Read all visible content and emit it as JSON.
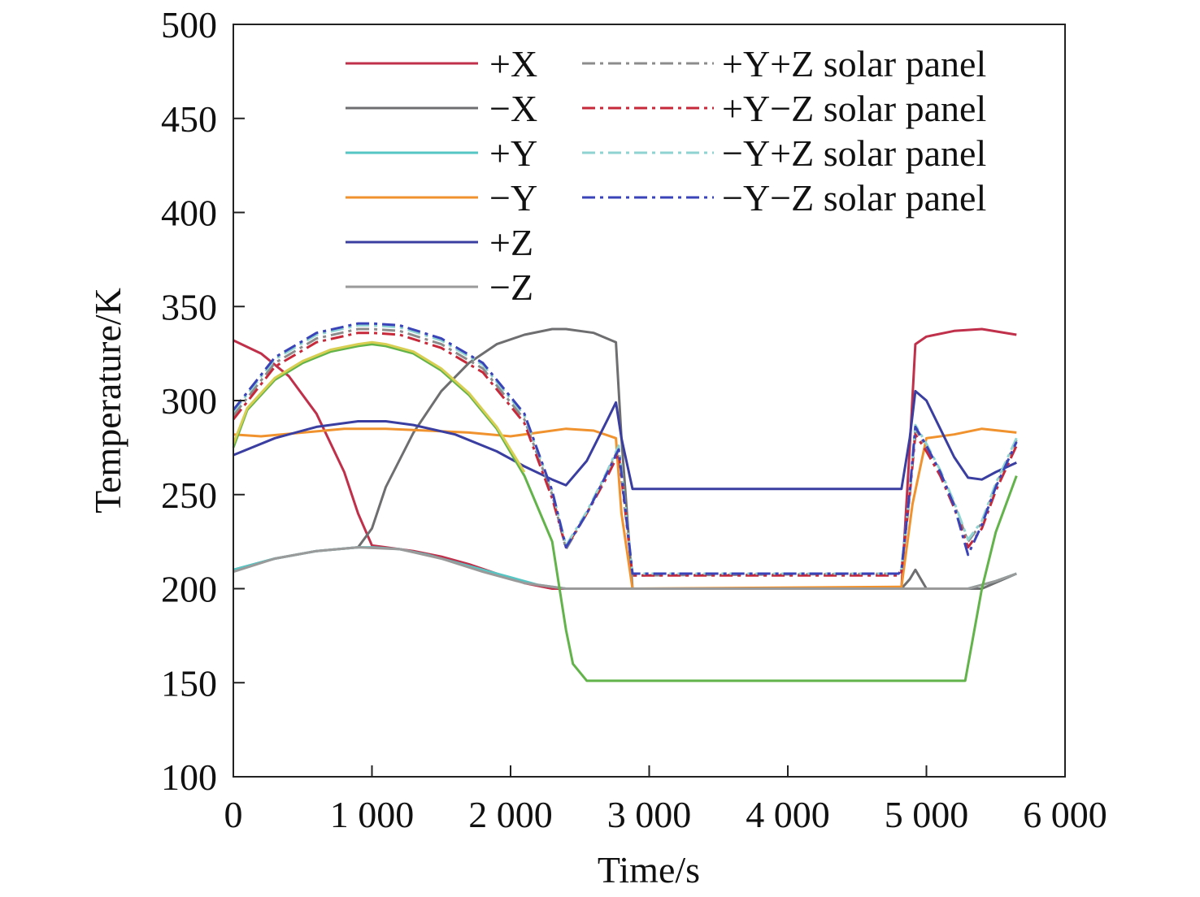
{
  "chart_data": {
    "type": "line",
    "title": "",
    "xlabel": "Time/s",
    "ylabel": "Temperature/K",
    "xlim": [
      0,
      6000
    ],
    "ylim": [
      100,
      500
    ],
    "xticks": [
      0,
      1000,
      2000,
      3000,
      4000,
      5000,
      6000
    ],
    "xtick_labels": [
      "0",
      "1 000",
      "2 000",
      "3 000",
      "4 000",
      "5 000",
      "6 000"
    ],
    "yticks": [
      100,
      150,
      200,
      250,
      300,
      350,
      400,
      450,
      500
    ],
    "ytick_labels": [
      "100",
      "150",
      "200",
      "250",
      "300",
      "350",
      "400",
      "450",
      "500"
    ],
    "grid": false,
    "legend_position": "top-right",
    "series": [
      {
        "name": "+X",
        "color": "#c0304a",
        "dash": "solid",
        "x": [
          0,
          200,
          400,
          600,
          800,
          900,
          1000,
          1100,
          1300,
          1500,
          1700,
          1900,
          2100,
          2300,
          2500,
          2700,
          2780,
          2880,
          4800,
          4820,
          4880,
          4920,
          5000,
          5200,
          5400,
          5650
        ],
        "y": [
          332,
          325,
          313,
          293,
          262,
          240,
          223,
          222,
          220,
          217,
          213,
          208,
          203,
          200,
          200,
          200,
          200,
          200,
          200,
          200,
          275,
          330,
          334,
          337,
          338,
          335
        ]
      },
      {
        "name": "−X",
        "color": "#6e6e70",
        "dash": "solid",
        "x": [
          0,
          300,
          600,
          900,
          1000,
          1100,
          1300,
          1500,
          1700,
          1900,
          2100,
          2300,
          2400,
          2600,
          2760,
          2800,
          2880,
          4800,
          4820,
          4880,
          4920,
          5000,
          5200,
          5400,
          5650
        ],
        "y": [
          210,
          216,
          220,
          222,
          232,
          254,
          283,
          305,
          320,
          330,
          335,
          338,
          338,
          336,
          331,
          280,
          200,
          200,
          200,
          205,
          210,
          200,
          200,
          200,
          208
        ]
      },
      {
        "name": "+Y",
        "color": "#55c6c4",
        "dash": "solid",
        "x": [
          0,
          300,
          600,
          900,
          1000,
          1200,
          1400,
          1600,
          1800,
          2000,
          2200,
          2400,
          2600,
          2800,
          3000,
          3500,
          4000,
          4500,
          5000,
          5300,
          5500,
          5650
        ],
        "y": [
          210,
          216,
          220,
          222,
          222,
          221,
          218,
          214,
          210,
          206,
          202,
          200,
          200,
          200,
          200,
          200,
          200,
          200,
          200,
          200,
          204,
          208
        ]
      },
      {
        "name": "−Y",
        "color": "#f0922e",
        "dash": "solid",
        "x": [
          0,
          200,
          500,
          800,
          1100,
          1400,
          1700,
          2000,
          2200,
          2400,
          2600,
          2760,
          2800,
          2880,
          4800,
          4820,
          4900,
          5000,
          5200,
          5400,
          5650
        ],
        "y": [
          282,
          281,
          283,
          285,
          285,
          284,
          283,
          281,
          283,
          285,
          284,
          280,
          240,
          200,
          201,
          201,
          245,
          280,
          282,
          285,
          283
        ]
      },
      {
        "name": "+Z",
        "color": "#3a3ea0",
        "dash": "solid",
        "x": [
          0,
          300,
          600,
          900,
          1100,
          1300,
          1600,
          1900,
          2100,
          2300,
          2400,
          2550,
          2700,
          2760,
          2800,
          2880,
          4800,
          4820,
          4880,
          4920,
          5000,
          5100,
          5200,
          5300,
          5400,
          5500,
          5650
        ],
        "y": [
          271,
          280,
          286,
          289,
          289,
          287,
          282,
          273,
          265,
          258,
          255,
          268,
          290,
          299,
          280,
          253,
          253,
          253,
          280,
          305,
          300,
          285,
          270,
          259,
          258,
          262,
          267
        ]
      },
      {
        "name": "−Z",
        "color": "#9a9a9a",
        "dash": "solid",
        "x": [
          0,
          300,
          600,
          900,
          1200,
          1500,
          1800,
          2100,
          2400,
          2700,
          3000,
          3500,
          4000,
          4500,
          5000,
          5300,
          5500,
          5650
        ],
        "y": [
          209,
          216,
          220,
          222,
          221,
          216,
          209,
          203,
          200,
          200,
          200,
          200,
          200,
          200,
          200,
          200,
          204,
          208
        ]
      },
      {
        "name": "",
        "color": "#62b34a",
        "dash": "solid",
        "x": [
          0,
          100,
          300,
          500,
          700,
          900,
          1000,
          1100,
          1300,
          1500,
          1700,
          1900,
          2100,
          2300,
          2400,
          2450,
          2550,
          3000,
          4000,
          5000,
          5280,
          5400,
          5500,
          5650
        ],
        "y": [
          275,
          295,
          311,
          320,
          326,
          329,
          330,
          329,
          325,
          316,
          303,
          285,
          260,
          225,
          178,
          160,
          151,
          151,
          151,
          151,
          151,
          200,
          230,
          260
        ]
      },
      {
        "name": "",
        "color": "#d8cf52",
        "dash": "solid",
        "x": [
          0,
          100,
          300,
          500,
          700,
          900,
          1000,
          1100,
          1300,
          1500,
          1700,
          1900,
          2100
        ],
        "y": [
          277,
          296,
          312,
          321,
          327,
          330,
          331,
          330,
          326,
          317,
          304,
          286,
          262
        ]
      },
      {
        "name": "+Y+Z solar panel",
        "color": "#8c8c8c",
        "dash": "dashdot",
        "x": [
          0,
          300,
          600,
          900,
          1000,
          1200,
          1500,
          1800,
          2100,
          2300,
          2400,
          2550,
          2700,
          2780,
          2880,
          4800,
          4820,
          4880,
          4920,
          5000,
          5100,
          5200,
          5300,
          5400,
          5500,
          5650
        ],
        "y": [
          292,
          320,
          333,
          338,
          338,
          337,
          330,
          317,
          290,
          250,
          221,
          240,
          262,
          275,
          207,
          208,
          210,
          250,
          285,
          275,
          262,
          245,
          225,
          235,
          255,
          279
        ]
      },
      {
        "name": "+Y−Z solar panel",
        "color": "#c62a3a",
        "dash": "dashdot",
        "x": [
          0,
          300,
          600,
          900,
          1000,
          1200,
          1500,
          1800,
          2100,
          2300,
          2400,
          2550,
          2700,
          2780,
          2880,
          4800,
          4820,
          4880,
          4920,
          5000,
          5100,
          5200,
          5300,
          5400,
          5500,
          5650
        ],
        "y": [
          290,
          318,
          331,
          336,
          336,
          335,
          328,
          315,
          288,
          248,
          222,
          240,
          260,
          272,
          207,
          207,
          209,
          250,
          282,
          273,
          260,
          243,
          222,
          232,
          252,
          276
        ]
      },
      {
        "name": "−Y+Z solar panel",
        "color": "#8fd4d2",
        "dash": "dashdot",
        "x": [
          0,
          300,
          600,
          900,
          1000,
          1200,
          1500,
          1800,
          2100,
          2300,
          2400,
          2550,
          2700,
          2780,
          2880,
          4800,
          4820,
          4880,
          4920,
          5000,
          5100,
          5200,
          5300,
          5400,
          5500,
          5650
        ],
        "y": [
          294,
          322,
          335,
          340,
          340,
          339,
          332,
          319,
          292,
          252,
          223,
          241,
          263,
          276,
          208,
          208,
          210,
          252,
          287,
          277,
          263,
          246,
          226,
          236,
          256,
          280
        ]
      },
      {
        "name": "−Y−Z solar panel",
        "color": "#3a44b8",
        "dash": "dashdot",
        "x": [
          0,
          300,
          600,
          900,
          1000,
          1200,
          1500,
          1800,
          2100,
          2300,
          2400,
          2550,
          2700,
          2780,
          2880,
          4800,
          4820,
          4880,
          4920,
          5000,
          5100,
          5200,
          5300,
          5400,
          5500,
          5650
        ],
        "y": [
          295,
          323,
          336,
          341,
          341,
          340,
          333,
          320,
          293,
          252,
          222,
          240,
          262,
          274,
          208,
          208,
          210,
          252,
          286,
          276,
          262,
          244,
          218,
          234,
          254,
          278
        ]
      }
    ]
  }
}
